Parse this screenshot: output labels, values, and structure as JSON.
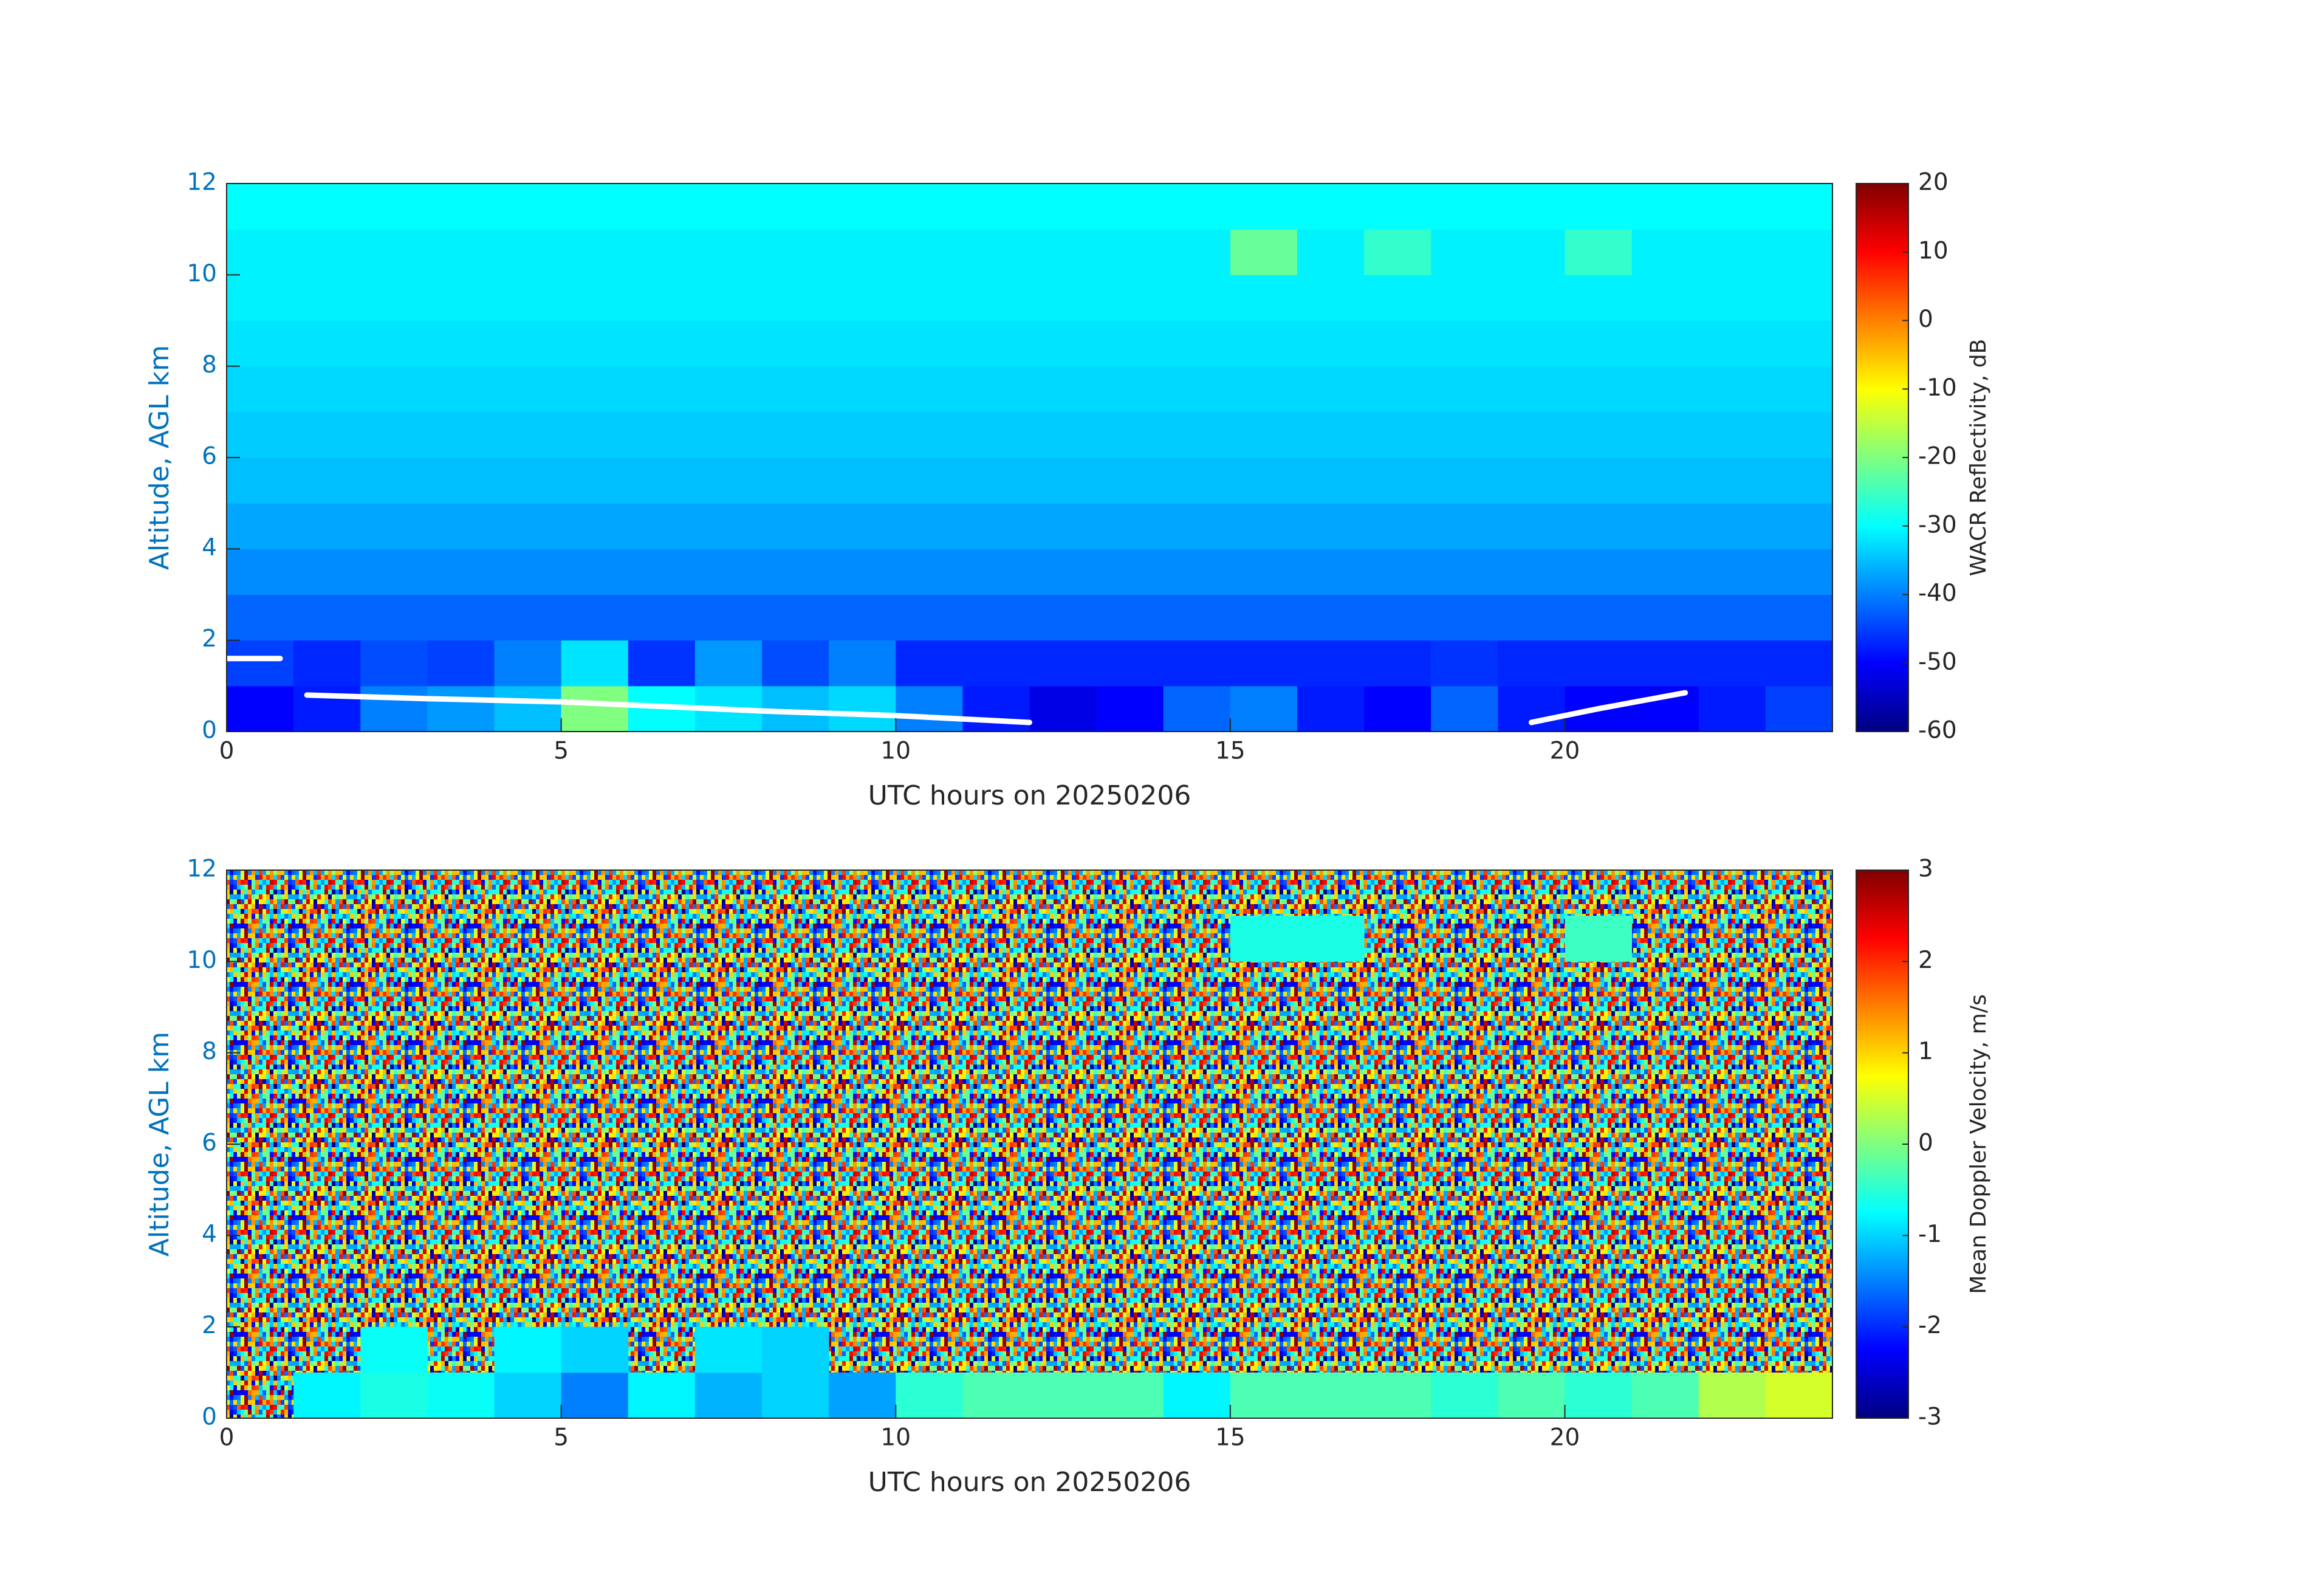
{
  "chart_data": [
    {
      "type": "heatmap",
      "xlabel": "UTC hours on 20250206",
      "ylabel": "Altitude, AGL km",
      "colorbar_label": "WACR Reflectivity, dB",
      "xlim": [
        0,
        24
      ],
      "xticks": [
        0,
        5,
        10,
        15,
        20
      ],
      "ylim": [
        0,
        12
      ],
      "yticks": [
        0,
        2,
        4,
        6,
        8,
        10,
        12
      ],
      "clim": [
        -60,
        20
      ],
      "cticks": [
        -60,
        -50,
        -40,
        -30,
        -20,
        -10,
        0,
        10,
        20
      ],
      "colormap": "jet",
      "xbins": [
        0,
        1,
        2,
        3,
        4,
        5,
        6,
        7,
        8,
        9,
        10,
        11,
        12,
        13,
        14,
        15,
        16,
        17,
        18,
        19,
        20,
        21,
        22,
        23,
        24
      ],
      "ybins": [
        0,
        1,
        2,
        3,
        4,
        5,
        6,
        7,
        8,
        9,
        10,
        11,
        12
      ],
      "values": [
        [
          -50,
          -48,
          -40,
          -38,
          -35,
          -20,
          -30,
          -32,
          -35,
          -33,
          -40,
          -48,
          -52,
          -50,
          -42,
          -40,
          -48,
          -50,
          -42,
          -48,
          -50,
          -50,
          -48,
          -45
        ],
        [
          -45,
          -47,
          -44,
          -45,
          -40,
          -32,
          -46,
          -38,
          -44,
          -40,
          -47,
          -47,
          -47,
          -47,
          -47,
          -47,
          -47,
          -47,
          -46,
          -47,
          -47,
          -47,
          -47,
          -47
        ],
        [
          -42,
          -42,
          -42,
          -42,
          -42,
          -42,
          -42,
          -42,
          -42,
          -42,
          -42,
          -42,
          -42,
          -42,
          -42,
          -42,
          -42,
          -42,
          -42,
          -42,
          -42,
          -42,
          -42,
          -42
        ],
        [
          -39,
          -39,
          -39,
          -39,
          -39,
          -39,
          -39,
          -39,
          -39,
          -39,
          -39,
          -39,
          -39,
          -39,
          -39,
          -39,
          -39,
          -39,
          -39,
          -39,
          -39,
          -39,
          -39,
          -39
        ],
        [
          -37,
          -37,
          -37,
          -37,
          -37,
          -37,
          -37,
          -37,
          -37,
          -37,
          -37,
          -37,
          -37,
          -37,
          -37,
          -37,
          -37,
          -37,
          -37,
          -37,
          -37,
          -37,
          -37,
          -37
        ],
        [
          -35,
          -35,
          -35,
          -35,
          -35,
          -35,
          -35,
          -35,
          -35,
          -35,
          -35,
          -35,
          -35,
          -35,
          -35,
          -35,
          -35,
          -35,
          -35,
          -35,
          -35,
          -35,
          -35,
          -35
        ],
        [
          -34,
          -34,
          -34,
          -34,
          -34,
          -34,
          -34,
          -34,
          -34,
          -34,
          -34,
          -34,
          -34,
          -34,
          -34,
          -34,
          -34,
          -34,
          -34,
          -34,
          -34,
          -34,
          -34,
          -34
        ],
        [
          -33,
          -33,
          -33,
          -33,
          -33,
          -33,
          -33,
          -33,
          -33,
          -33,
          -33,
          -33,
          -33,
          -33,
          -33,
          -33,
          -33,
          -33,
          -33,
          -33,
          -33,
          -33,
          -33,
          -33
        ],
        [
          -32,
          -32,
          -32,
          -32,
          -32,
          -32,
          -32,
          -32,
          -32,
          -32,
          -32,
          -32,
          -32,
          -32,
          -32,
          -32,
          -32,
          -32,
          -32,
          -32,
          -32,
          -32,
          -32,
          -32
        ],
        [
          -31,
          -31,
          -31,
          -31,
          -31,
          -31,
          -31,
          -31,
          -31,
          -31,
          -31,
          -31,
          -31,
          -31,
          -31,
          -31,
          -31,
          -31,
          -31,
          -31,
          -31,
          -31,
          -31,
          -31
        ],
        [
          -31,
          -31,
          -31,
          -31,
          -31,
          -31,
          -31,
          -31,
          -31,
          -31,
          -31,
          -31,
          -31,
          -31,
          -31,
          -22,
          -31,
          -26,
          -31,
          -31,
          -26,
          -31,
          -31,
          -31
        ],
        [
          -30,
          -30,
          -30,
          -30,
          -30,
          -30,
          -30,
          -30,
          -30,
          -30,
          -30,
          -30,
          -30,
          -30,
          -30,
          -30,
          -30,
          -30,
          -30,
          -30,
          -30,
          -30,
          -30,
          -30
        ]
      ],
      "overlay": {
        "color": "#ffffff",
        "x": [
          0,
          0.8,
          1,
          1.2,
          3,
          5,
          8,
          10,
          12,
          15,
          19.5,
          20.5,
          21.8
        ],
        "y": [
          1.6,
          1.6,
          null,
          0.8,
          0.72,
          0.65,
          0.45,
          0.35,
          0.2,
          null,
          0.2,
          0.5,
          0.85
        ]
      }
    },
    {
      "type": "heatmap",
      "xlabel": "UTC hours on 20250206",
      "ylabel": "Altitude, AGL km",
      "colorbar_label": "Mean Doppler Velocity, m/s",
      "xlim": [
        0,
        24
      ],
      "xticks": [
        0,
        5,
        10,
        15,
        20
      ],
      "ylim": [
        0,
        12
      ],
      "yticks": [
        0,
        2,
        4,
        6,
        8,
        10,
        12
      ],
      "clim": [
        -3,
        3
      ],
      "cticks": [
        -3,
        -2,
        -1,
        0,
        1,
        2,
        3
      ],
      "colormap": "jet",
      "xbins": [
        0,
        1,
        2,
        3,
        4,
        5,
        6,
        7,
        8,
        9,
        10,
        11,
        12,
        13,
        14,
        15,
        16,
        17,
        18,
        19,
        20,
        21,
        22,
        23,
        24
      ],
      "ybins": [
        0,
        1,
        2,
        3,
        4,
        5,
        6,
        7,
        8,
        9,
        10,
        11,
        12
      ],
      "values": [
        [
          null,
          -0.8,
          -0.6,
          -0.7,
          -1.0,
          -1.5,
          -0.8,
          -1.2,
          -1.0,
          -1.3,
          -0.5,
          -0.3,
          -0.3,
          -0.3,
          -0.8,
          -0.3,
          -0.3,
          -0.3,
          -0.5,
          -0.3,
          -0.5,
          -0.3,
          0.3,
          0.5
        ],
        [
          null,
          null,
          -0.7,
          null,
          -0.8,
          -1.0,
          null,
          -0.9,
          -1.0,
          null,
          null,
          null,
          null,
          null,
          null,
          null,
          null,
          null,
          null,
          null,
          null,
          null,
          null,
          null
        ],
        [
          null,
          null,
          null,
          null,
          null,
          null,
          null,
          null,
          null,
          null,
          null,
          null,
          null,
          null,
          null,
          null,
          null,
          null,
          null,
          null,
          null,
          null,
          null,
          null
        ],
        [
          null,
          null,
          null,
          null,
          null,
          null,
          null,
          null,
          null,
          null,
          null,
          null,
          null,
          null,
          null,
          null,
          null,
          null,
          null,
          null,
          null,
          null,
          null,
          null
        ],
        [
          null,
          null,
          null,
          null,
          null,
          null,
          null,
          null,
          null,
          null,
          null,
          null,
          null,
          null,
          null,
          null,
          null,
          null,
          null,
          null,
          null,
          null,
          null,
          null
        ],
        [
          null,
          null,
          null,
          null,
          null,
          null,
          null,
          null,
          null,
          null,
          null,
          null,
          null,
          null,
          null,
          null,
          null,
          null,
          null,
          null,
          null,
          null,
          null,
          null
        ],
        [
          null,
          null,
          null,
          null,
          null,
          null,
          null,
          null,
          null,
          null,
          null,
          null,
          null,
          null,
          null,
          null,
          null,
          null,
          null,
          null,
          null,
          null,
          null,
          null
        ],
        [
          null,
          null,
          null,
          null,
          null,
          null,
          null,
          null,
          null,
          null,
          null,
          null,
          null,
          null,
          null,
          null,
          null,
          null,
          null,
          null,
          null,
          null,
          null,
          null
        ],
        [
          null,
          null,
          null,
          null,
          null,
          null,
          null,
          null,
          null,
          null,
          null,
          null,
          null,
          null,
          null,
          null,
          null,
          null,
          null,
          null,
          null,
          null,
          null,
          null
        ],
        [
          null,
          null,
          null,
          null,
          null,
          null,
          null,
          null,
          null,
          null,
          null,
          null,
          null,
          null,
          null,
          null,
          null,
          null,
          null,
          null,
          null,
          null,
          null,
          null
        ],
        [
          null,
          null,
          null,
          null,
          null,
          null,
          null,
          null,
          null,
          null,
          null,
          null,
          null,
          null,
          null,
          -0.6,
          -0.6,
          null,
          null,
          null,
          -0.4,
          null,
          null,
          null
        ],
        [
          null,
          null,
          null,
          null,
          null,
          null,
          null,
          null,
          null,
          null,
          null,
          null,
          null,
          null,
          null,
          null,
          null,
          null,
          null,
          null,
          null,
          null,
          null,
          null
        ]
      ]
    }
  ]
}
